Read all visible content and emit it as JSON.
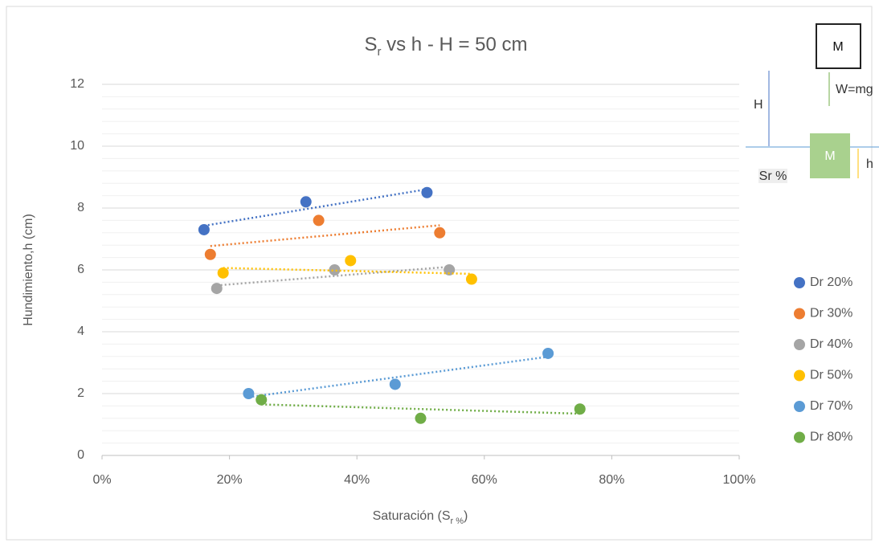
{
  "chart_data": {
    "type": "scatter",
    "title": {
      "main": "S",
      "sub": "r",
      "rest": " vs h - H = 50 cm"
    },
    "x_label": {
      "main": "Saturación (S",
      "sub": "r %",
      "rest": ")"
    },
    "y_label": "Hundimiento,h (cm)",
    "xlim": [
      0,
      100
    ],
    "xticks": [
      {
        "value": 0,
        "label": "0%"
      },
      {
        "value": 20,
        "label": "20%"
      },
      {
        "value": 40,
        "label": "40%"
      },
      {
        "value": 60,
        "label": "60%"
      },
      {
        "value": 80,
        "label": "80%"
      },
      {
        "value": 100,
        "label": "100%"
      }
    ],
    "ylim": [
      0,
      12
    ],
    "yticks": [
      0,
      2,
      4,
      6,
      8,
      10,
      12
    ],
    "grid": true,
    "minor_divisions": 5,
    "trendline": "linear",
    "legend": "right",
    "series": [
      {
        "name": "Dr 20%",
        "color": "#4472c4",
        "x": [
          16,
          32,
          51
        ],
        "values": [
          7.3,
          8.2,
          8.5
        ]
      },
      {
        "name": "Dr 30%",
        "color": "#ed7d31",
        "x": [
          17,
          34,
          53
        ],
        "values": [
          6.5,
          7.6,
          7.2
        ]
      },
      {
        "name": "Dr 40%",
        "color": "#a5a5a5",
        "x": [
          18,
          36.5,
          54.5
        ],
        "values": [
          5.4,
          6.0,
          6.0
        ]
      },
      {
        "name": "Dr 50%",
        "color": "#ffc000",
        "x": [
          19,
          39,
          58
        ],
        "values": [
          5.9,
          6.3,
          5.7
        ]
      },
      {
        "name": "Dr 70%",
        "color": "#5b9bd5",
        "x": [
          23,
          46,
          70
        ],
        "values": [
          2.0,
          2.3,
          3.3
        ]
      },
      {
        "name": "Dr 80%",
        "color": "#70ad47",
        "x": [
          25,
          50,
          75
        ],
        "values": [
          1.8,
          1.2,
          1.5
        ]
      }
    ],
    "diagram": {
      "mass_top": "M",
      "weight": "W=mg",
      "height": "H",
      "saturation": "Sr %",
      "mass_bottom": "M",
      "sink": "h"
    }
  }
}
